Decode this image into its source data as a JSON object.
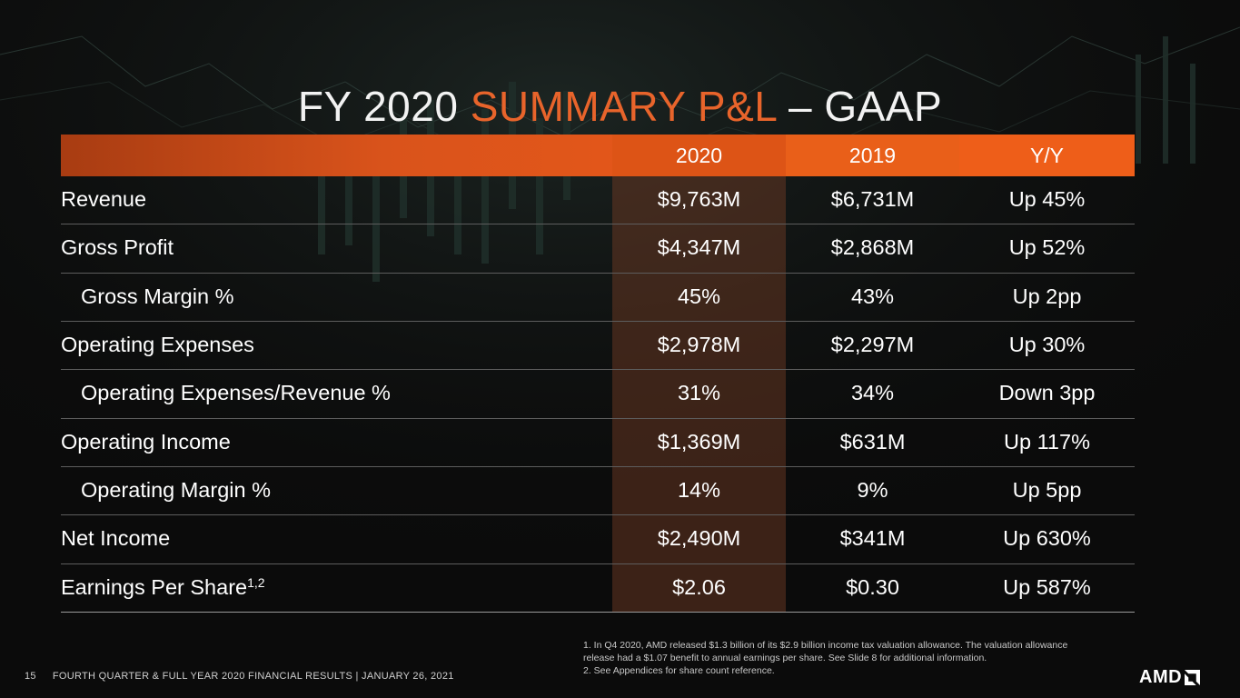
{
  "title": {
    "part1": "FY 2020 ",
    "accent": "SUMMARY P&L",
    "part2": " – GAAP"
  },
  "table": {
    "columns": [
      "2020",
      "2019",
      "Y/Y"
    ],
    "rows": [
      {
        "label": "Revenue",
        "v2020": "$9,763M",
        "v2019": "$6,731M",
        "yy": "Up 45%"
      },
      {
        "label": "Gross Profit",
        "v2020": "$4,347M",
        "v2019": "$2,868M",
        "yy": "Up 52%"
      },
      {
        "label": "Gross Margin %",
        "v2020": "45%",
        "v2019": "43%",
        "yy": "Up 2pp"
      },
      {
        "label": "Operating Expenses",
        "v2020": "$2,978M",
        "v2019": "$2,297M",
        "yy": "Up 30%"
      },
      {
        "label": "Operating Expenses/Revenue %",
        "v2020": "31%",
        "v2019": "34%",
        "yy": "Down 3pp"
      },
      {
        "label": "Operating Income",
        "v2020": "$1,369M",
        "v2019": "$631M",
        "yy": "Up 117%"
      },
      {
        "label": "Operating Margin %",
        "v2020": "14%",
        "v2019": "9%",
        "yy": "Up 5pp"
      },
      {
        "label": "Net Income",
        "v2020": "$2,490M",
        "v2019": "$341M",
        "yy": "Up 630%"
      },
      {
        "label": "Earnings Per Share",
        "label_sup": "1,2",
        "v2020": "$2.06",
        "v2019": "$0.30",
        "yy": "Up 587%"
      }
    ]
  },
  "footnotes": {
    "note1": "1. In Q4 2020, AMD released $1.3 billion of its $2.9 billion income tax valuation allowance.  The valuation allowance release had a $1.07 benefit to annual earnings per share. See Slide 8 for additional information.",
    "note2": "2.  See Appendices for share count reference."
  },
  "footer": {
    "page_number": "15",
    "text": "FOURTH QUARTER & FULL YEAR 2020 FINANCIAL RESULTS   |   JANUARY 26, 2021"
  },
  "logo": {
    "text": "AMD",
    "icon": "amd-arrow-icon"
  },
  "colors": {
    "accent": "#e8642b",
    "header": "#e6581a",
    "background": "#0b0b0b"
  }
}
